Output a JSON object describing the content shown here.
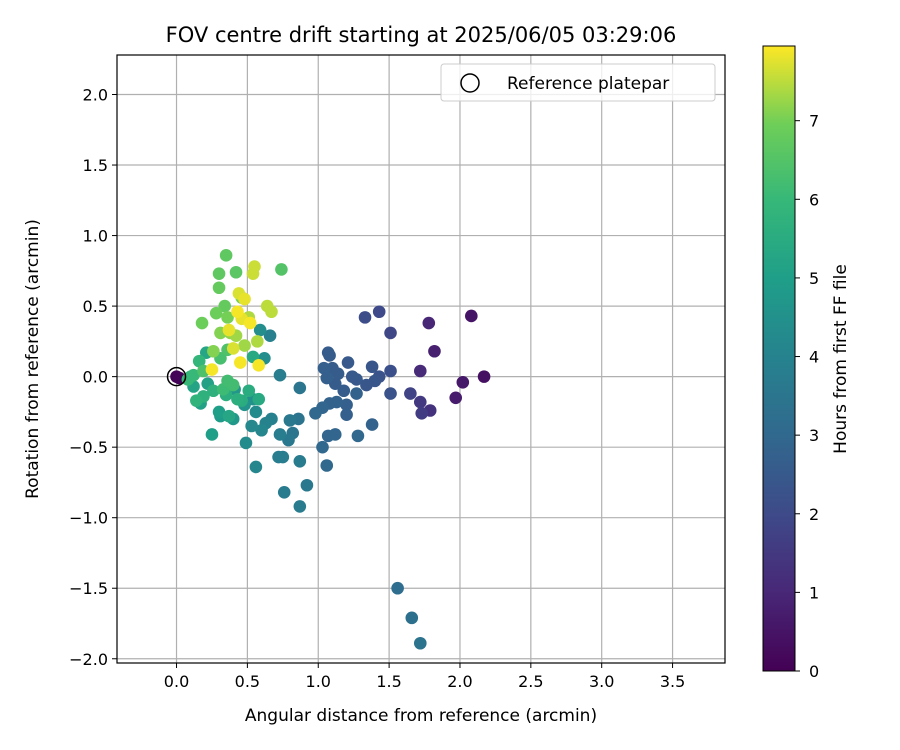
{
  "chart_data": {
    "type": "scatter",
    "title": "FOV centre drift starting at 2025/06/05 03:29:06",
    "xlabel": "Angular distance from reference (arcmin)",
    "ylabel": "Rotation from reference (arcmin)",
    "xlim": [
      -0.42,
      3.87
    ],
    "ylim": [
      -2.03,
      2.28
    ],
    "xticks": [
      "0.0",
      "0.5",
      "1.0",
      "1.5",
      "2.0",
      "2.5",
      "3.0",
      "3.5"
    ],
    "yticks": [
      "−2.0",
      "−1.5",
      "−1.0",
      "−0.5",
      "0.0",
      "0.5",
      "1.0",
      "1.5",
      "2.0"
    ],
    "grid": true,
    "legend": {
      "position": "top-right",
      "entries": [
        "Reference platepar"
      ]
    },
    "reference_point": {
      "x": 0.0,
      "y": 0.0
    },
    "colorbar": {
      "label": "Hours from first FF file",
      "colormap": "viridis",
      "range": [
        0,
        7.95
      ],
      "ticks": [
        "0",
        "1",
        "2",
        "3",
        "4",
        "5",
        "6",
        "7"
      ]
    },
    "series": [
      {
        "points": [
          [
            0.0,
            0.0,
            0.05
          ],
          [
            0.02,
            -0.01,
            0.1
          ],
          [
            2.17,
            0.0,
            0.4
          ],
          [
            2.08,
            0.43,
            0.5
          ],
          [
            2.02,
            -0.04,
            0.6
          ],
          [
            1.97,
            -0.15,
            0.7
          ],
          [
            1.82,
            0.18,
            0.8
          ],
          [
            1.78,
            0.38,
            1.0
          ],
          [
            1.72,
            0.04,
            1.1
          ],
          [
            1.79,
            -0.24,
            1.3
          ],
          [
            1.72,
            -0.18,
            1.5
          ],
          [
            1.73,
            -0.26,
            1.6
          ],
          [
            1.65,
            -0.12,
            1.8
          ],
          [
            1.51,
            0.31,
            1.9
          ],
          [
            1.43,
            0.46,
            2.0
          ],
          [
            1.33,
            0.42,
            2.1
          ],
          [
            1.51,
            0.04,
            2.2
          ],
          [
            1.51,
            -0.12,
            2.3
          ],
          [
            1.43,
            0.0,
            2.3
          ],
          [
            1.4,
            -0.03,
            2.4
          ],
          [
            1.38,
            0.07,
            2.4
          ],
          [
            1.34,
            -0.06,
            2.4
          ],
          [
            1.27,
            -0.02,
            2.5
          ],
          [
            1.24,
            0.0,
            2.5
          ],
          [
            1.21,
            0.1,
            2.5
          ],
          [
            1.18,
            -0.1,
            2.6
          ],
          [
            1.14,
            0.02,
            2.6
          ],
          [
            1.12,
            -0.05,
            2.6
          ],
          [
            1.1,
            0.06,
            2.6
          ],
          [
            1.08,
            0.15,
            2.6
          ],
          [
            1.07,
            0.17,
            2.6
          ],
          [
            1.04,
            0.06,
            2.7
          ],
          [
            1.06,
            -0.01,
            2.7
          ],
          [
            1.2,
            -0.2,
            2.7
          ],
          [
            1.2,
            -0.27,
            2.7
          ],
          [
            1.27,
            -0.12,
            2.8
          ],
          [
            1.38,
            -0.34,
            2.8
          ],
          [
            1.13,
            -0.18,
            2.8
          ],
          [
            1.08,
            -0.19,
            2.8
          ],
          [
            1.03,
            -0.22,
            2.9
          ],
          [
            1.12,
            -0.41,
            2.9
          ],
          [
            1.07,
            -0.42,
            2.9
          ],
          [
            1.03,
            -0.5,
            3.0
          ],
          [
            1.06,
            -0.63,
            3.0
          ],
          [
            1.28,
            -0.42,
            3.0
          ],
          [
            0.98,
            -0.26,
            3.0
          ],
          [
            1.56,
            -1.5,
            3.2
          ],
          [
            1.66,
            -1.71,
            3.3
          ],
          [
            1.72,
            -1.89,
            3.4
          ],
          [
            0.86,
            -0.3,
            3.4
          ],
          [
            0.87,
            -0.08,
            3.5
          ],
          [
            0.82,
            -0.4,
            3.5
          ],
          [
            0.79,
            -0.45,
            3.6
          ],
          [
            0.8,
            -0.31,
            3.6
          ],
          [
            0.92,
            -0.77,
            3.6
          ],
          [
            0.87,
            -0.92,
            3.7
          ],
          [
            0.87,
            -0.6,
            3.7
          ],
          [
            0.76,
            -0.82,
            3.7
          ],
          [
            0.75,
            -0.57,
            3.8
          ],
          [
            0.72,
            -0.57,
            3.8
          ],
          [
            0.73,
            -0.41,
            3.8
          ],
          [
            0.73,
            0.01,
            3.8
          ],
          [
            0.66,
            0.29,
            3.9
          ],
          [
            0.67,
            -0.3,
            3.9
          ],
          [
            0.63,
            -0.33,
            4.0
          ],
          [
            0.56,
            -0.64,
            4.1
          ],
          [
            0.6,
            -0.38,
            4.1
          ],
          [
            0.53,
            -0.35,
            4.2
          ],
          [
            0.49,
            -0.47,
            4.3
          ],
          [
            0.56,
            -0.25,
            4.3
          ],
          [
            0.62,
            0.13,
            4.4
          ],
          [
            0.59,
            0.33,
            4.4
          ],
          [
            0.54,
            -0.16,
            4.5
          ],
          [
            0.48,
            -0.2,
            4.6
          ],
          [
            0.41,
            -0.09,
            4.7
          ],
          [
            0.4,
            -0.3,
            4.8
          ],
          [
            0.31,
            -0.28,
            4.9
          ],
          [
            0.25,
            -0.41,
            5.0
          ],
          [
            0.3,
            -0.25,
            5.0
          ],
          [
            0.17,
            -0.19,
            5.1
          ],
          [
            0.22,
            -0.05,
            5.1
          ],
          [
            0.12,
            -0.07,
            5.2
          ],
          [
            0.21,
            0.17,
            5.3
          ],
          [
            0.37,
            -0.28,
            5.3
          ],
          [
            0.54,
            0.14,
            5.4
          ],
          [
            0.58,
            -0.16,
            5.4
          ],
          [
            0.51,
            -0.1,
            5.5
          ],
          [
            0.46,
            -0.17,
            5.5
          ],
          [
            0.43,
            -0.16,
            5.6
          ],
          [
            0.35,
            -0.13,
            5.6
          ],
          [
            0.26,
            -0.1,
            5.7
          ],
          [
            0.19,
            -0.14,
            5.7
          ],
          [
            0.14,
            -0.17,
            5.8
          ],
          [
            0.1,
            0.0,
            5.8
          ],
          [
            0.16,
            0.11,
            5.9
          ],
          [
            0.08,
            -0.02,
            6.0
          ],
          [
            0.12,
            0.01,
            6.0
          ],
          [
            0.33,
            -0.09,
            6.1
          ],
          [
            0.36,
            -0.03,
            6.2
          ],
          [
            0.4,
            -0.06,
            6.2
          ],
          [
            0.31,
            0.13,
            6.3
          ],
          [
            0.36,
            0.19,
            6.4
          ],
          [
            0.19,
            0.04,
            6.4
          ],
          [
            0.74,
            0.76,
            6.5
          ],
          [
            0.42,
            0.74,
            6.6
          ],
          [
            0.35,
            0.86,
            6.7
          ],
          [
            0.3,
            0.73,
            6.7
          ],
          [
            0.3,
            0.63,
            6.8
          ],
          [
            0.34,
            0.5,
            6.8
          ],
          [
            0.28,
            0.45,
            6.9
          ],
          [
            0.18,
            0.38,
            6.9
          ],
          [
            0.46,
            0.56,
            7.0
          ],
          [
            0.36,
            0.42,
            7.0
          ],
          [
            0.31,
            0.31,
            7.1
          ],
          [
            0.26,
            0.18,
            7.1
          ],
          [
            0.38,
            0.31,
            7.2
          ],
          [
            0.42,
            0.29,
            7.3
          ],
          [
            0.48,
            0.22,
            7.3
          ],
          [
            0.51,
            0.42,
            7.4
          ],
          [
            0.57,
            0.25,
            7.4
          ],
          [
            0.67,
            0.46,
            7.5
          ],
          [
            0.64,
            0.5,
            7.5
          ],
          [
            0.54,
            0.73,
            7.6
          ],
          [
            0.55,
            0.78,
            7.6
          ],
          [
            0.44,
            0.59,
            7.7
          ],
          [
            0.4,
            0.2,
            7.7
          ],
          [
            0.37,
            0.33,
            7.8
          ],
          [
            0.46,
            0.41,
            7.8
          ],
          [
            0.48,
            0.55,
            7.8
          ],
          [
            0.52,
            0.38,
            7.9
          ],
          [
            0.58,
            0.08,
            7.9
          ],
          [
            0.45,
            0.1,
            7.9
          ],
          [
            0.25,
            0.05,
            7.9
          ],
          [
            0.43,
            0.46,
            7.9
          ]
        ]
      }
    ]
  }
}
